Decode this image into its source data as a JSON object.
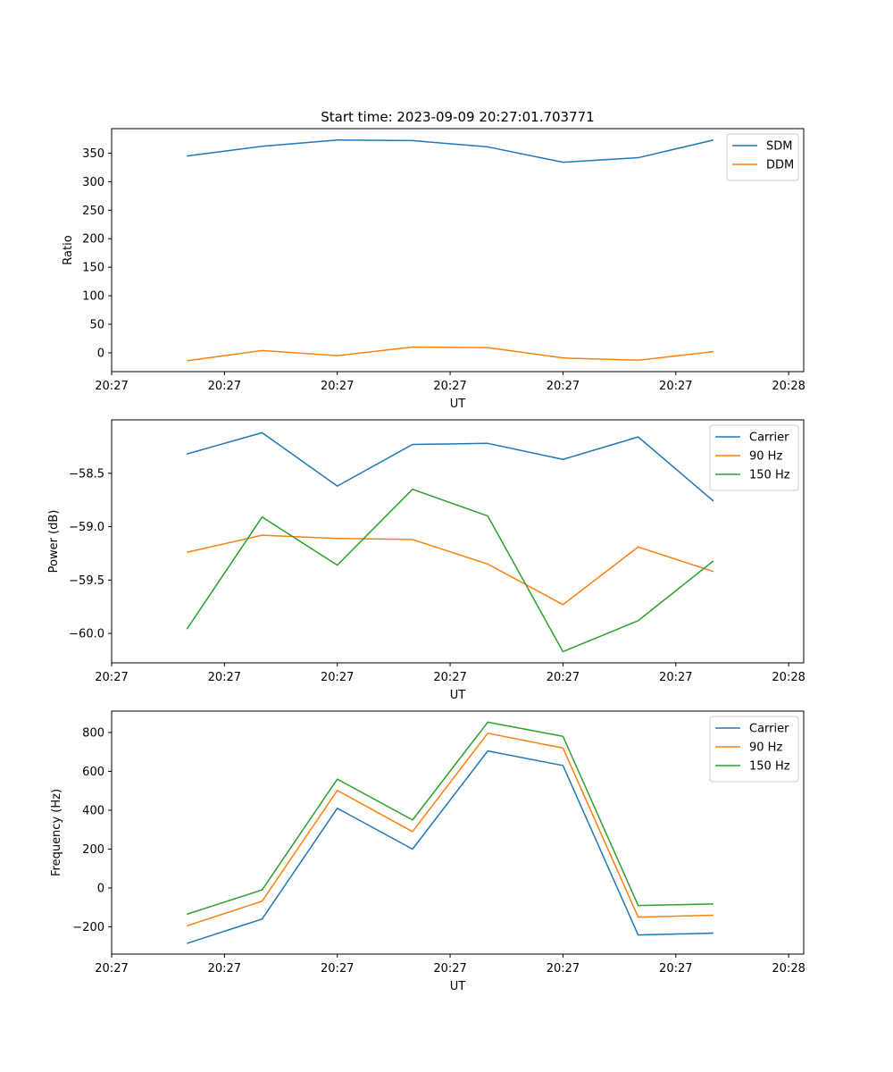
{
  "figure": {
    "title": "Start time: 2023-09-09 20:27:01.703771"
  },
  "colors": {
    "blue": "#1f77b4",
    "orange": "#ff7f0e",
    "green": "#2ca02c"
  },
  "chart_data": [
    {
      "type": "line",
      "title": "Start time: 2023-09-09 20:27:01.703771",
      "xlabel": "UT",
      "ylabel": "Ratio",
      "x_index": [
        1,
        2,
        3,
        4,
        5,
        6,
        7,
        8
      ],
      "xlim": [
        0,
        9.2
      ],
      "x_ticks": [
        0,
        1.5,
        3,
        4.5,
        6,
        7.5,
        9
      ],
      "x_tick_labels": [
        "20:27",
        "20:27",
        "20:27",
        "20:27",
        "20:27",
        "20:27",
        "20:28"
      ],
      "ylim": [
        -33,
        393
      ],
      "y_ticks": [
        0,
        50,
        100,
        150,
        200,
        250,
        300,
        350
      ],
      "legend_position": "top-right",
      "series": [
        {
          "name": "SDM",
          "color": "blue",
          "values": [
            345,
            362,
            373,
            372,
            361,
            334,
            342,
            373
          ]
        },
        {
          "name": "DDM",
          "color": "orange",
          "values": [
            -14,
            4,
            -5,
            10,
            9,
            -9,
            -13,
            2
          ]
        }
      ]
    },
    {
      "type": "line",
      "title": "",
      "xlabel": "UT",
      "ylabel": "Power (dB)",
      "x_index": [
        1,
        2,
        3,
        4,
        5,
        6,
        7,
        8
      ],
      "xlim": [
        0,
        9.2
      ],
      "x_ticks": [
        0,
        1.5,
        3,
        4.5,
        6,
        7.5,
        9
      ],
      "x_tick_labels": [
        "20:27",
        "20:27",
        "20:27",
        "20:27",
        "20:27",
        "20:27",
        "20:28"
      ],
      "ylim": [
        -60.275,
        -58.0
      ],
      "y_ticks": [
        -60.0,
        -59.5,
        -59.0,
        -58.5
      ],
      "y_tick_labels": [
        "−60.0",
        "−59.5",
        "−59.0",
        "−58.5"
      ],
      "legend_position": "top-right",
      "series": [
        {
          "name": "Carrier",
          "color": "blue",
          "values": [
            -58.32,
            -58.12,
            -58.62,
            -58.23,
            -58.22,
            -58.37,
            -58.16,
            -58.76
          ]
        },
        {
          "name": "90 Hz",
          "color": "orange",
          "values": [
            -59.24,
            -59.08,
            -59.11,
            -59.12,
            -59.35,
            -59.73,
            -59.19,
            -59.42
          ]
        },
        {
          "name": "150 Hz",
          "color": "green",
          "values": [
            -59.96,
            -58.91,
            -59.36,
            -58.65,
            -58.9,
            -60.17,
            -59.88,
            -59.32
          ]
        }
      ]
    },
    {
      "type": "line",
      "title": "",
      "xlabel": "UT",
      "ylabel": "Frequency (Hz)",
      "x_index": [
        1,
        2,
        3,
        4,
        5,
        6,
        7,
        8
      ],
      "xlim": [
        0,
        9.2
      ],
      "x_ticks": [
        0,
        1.5,
        3,
        4.5,
        6,
        7.5,
        9
      ],
      "x_tick_labels": [
        "20:27",
        "20:27",
        "20:27",
        "20:27",
        "20:27",
        "20:27",
        "20:28"
      ],
      "ylim": [
        -340,
        910
      ],
      "y_ticks": [
        -200,
        0,
        200,
        400,
        600,
        800
      ],
      "y_tick_labels": [
        "−200",
        "0",
        "200",
        "400",
        "600",
        "800"
      ],
      "legend_position": "top-right",
      "series": [
        {
          "name": "Carrier",
          "color": "blue",
          "values": [
            -285,
            -160,
            410,
            200,
            705,
            630,
            -242,
            -232
          ]
        },
        {
          "name": "90 Hz",
          "color": "orange",
          "values": [
            -195,
            -68,
            502,
            290,
            796,
            720,
            -150,
            -140
          ]
        },
        {
          "name": "150 Hz",
          "color": "green",
          "values": [
            -135,
            -10,
            560,
            350,
            853,
            780,
            -90,
            -82
          ]
        }
      ]
    }
  ]
}
